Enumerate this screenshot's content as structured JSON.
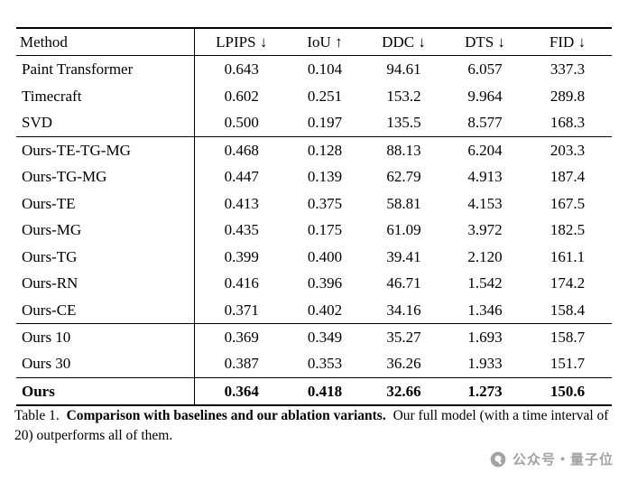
{
  "table": {
    "columns": [
      "Method",
      "LPIPS ↓",
      "IoU ↑",
      "DDC ↓",
      "DTS ↓",
      "FID ↓"
    ],
    "groups": [
      {
        "rows": [
          [
            "Paint Transformer",
            "0.643",
            "0.104",
            "94.61",
            "6.057",
            "337.3"
          ],
          [
            "Timecraft",
            "0.602",
            "0.251",
            "153.2",
            "9.964",
            "289.8"
          ],
          [
            "SVD",
            "0.500",
            "0.197",
            "135.5",
            "8.577",
            "168.3"
          ]
        ]
      },
      {
        "rows": [
          [
            "Ours-TE-TG-MG",
            "0.468",
            "0.128",
            "88.13",
            "6.204",
            "203.3"
          ],
          [
            "Ours-TG-MG",
            "0.447",
            "0.139",
            "62.79",
            "4.913",
            "187.4"
          ],
          [
            "Ours-TE",
            "0.413",
            "0.375",
            "58.81",
            "4.153",
            "167.5"
          ],
          [
            "Ours-MG",
            "0.435",
            "0.175",
            "61.09",
            "3.972",
            "182.5"
          ],
          [
            "Ours-TG",
            "0.399",
            "0.400",
            "39.41",
            "2.120",
            "161.1"
          ],
          [
            "Ours-RN",
            "0.416",
            "0.396",
            "46.71",
            "1.542",
            "174.2"
          ],
          [
            "Ours-CE",
            "0.371",
            "0.402",
            "34.16",
            "1.346",
            "158.4"
          ]
        ]
      },
      {
        "rows": [
          [
            "Ours 10",
            "0.369",
            "0.349",
            "35.27",
            "1.693",
            "158.7"
          ],
          [
            "Ours 30",
            "0.387",
            "0.353",
            "36.26",
            "1.933",
            "151.7"
          ]
        ]
      },
      {
        "bold": true,
        "rows": [
          [
            "Ours",
            "0.364",
            "0.418",
            "32.66",
            "1.273",
            "150.6"
          ]
        ]
      }
    ]
  },
  "caption": {
    "label": "Table 1.",
    "title": "Comparison with baselines and our ablation variants.",
    "text": "Our full model (with a time interval of 20) outperforms all of them."
  },
  "watermark": {
    "text": "公众号・量子位",
    "color": "#a3a3a3"
  }
}
